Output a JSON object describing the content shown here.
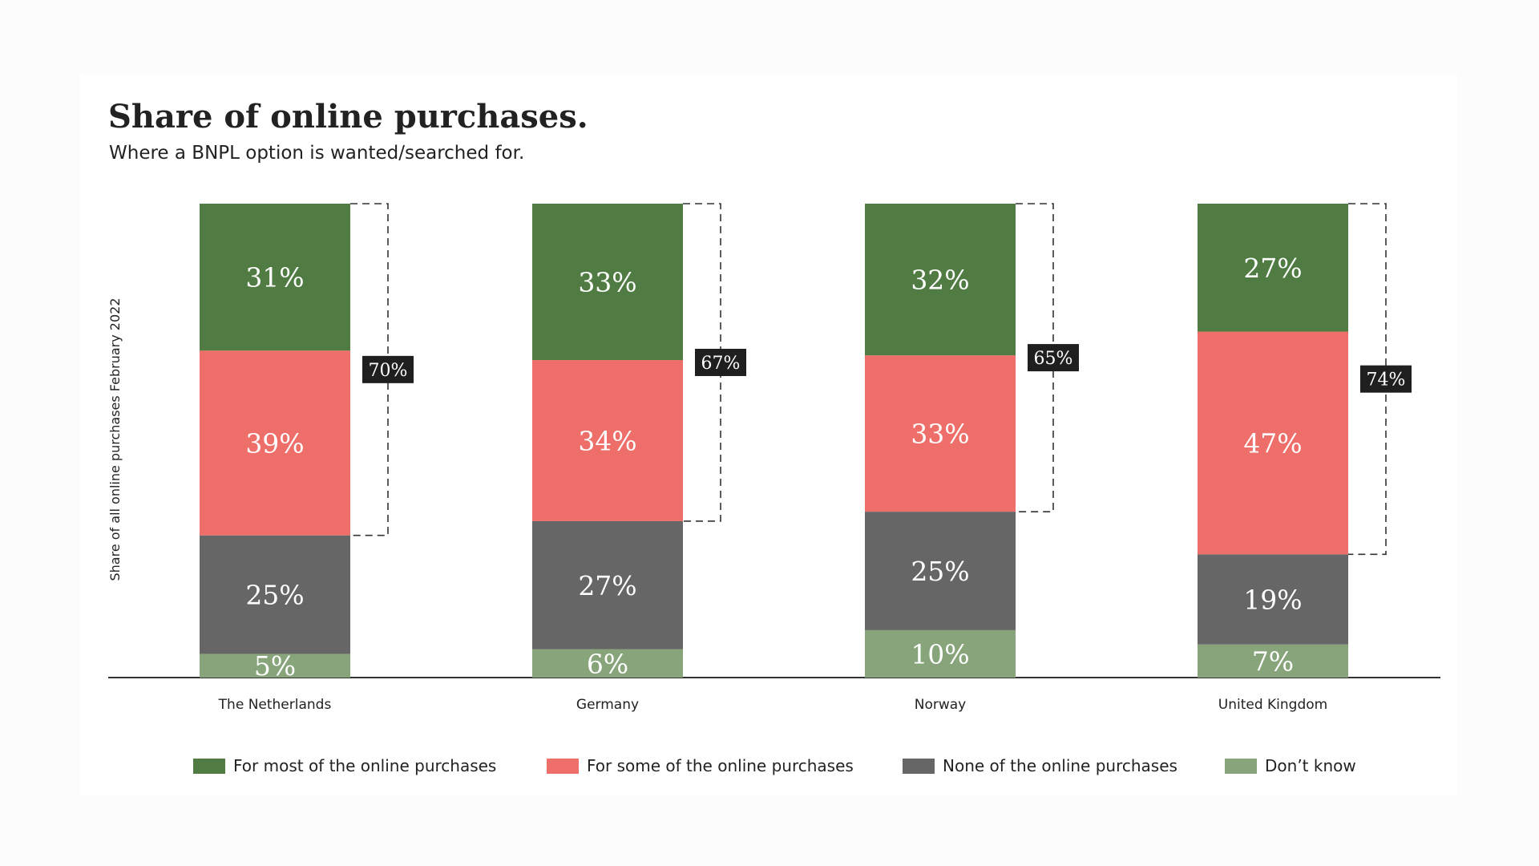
{
  "chart_data": {
    "type": "bar",
    "stacked": true,
    "title": "Share of online purchases.",
    "subtitle": "Where a BNPL option is wanted/searched for.",
    "xlabel": "",
    "ylabel": "Share of all online purchases February 2022",
    "ylim": [
      0,
      100
    ],
    "categories": [
      "The Netherlands",
      "Germany",
      "Norway",
      "United Kingdom"
    ],
    "series": [
      {
        "name": "Don’t know",
        "color": "#87a47a",
        "values": [
          5,
          6,
          10,
          7
        ]
      },
      {
        "name": "None of the online purchases",
        "color": "#666666",
        "values": [
          25,
          27,
          25,
          19
        ]
      },
      {
        "name": "For some of the online purchases",
        "color": "#ee6f6a",
        "values": [
          39,
          34,
          33,
          47
        ]
      },
      {
        "name": "For most of the online purchases",
        "color": "#507c43",
        "values": [
          31,
          33,
          32,
          27
        ]
      }
    ],
    "value_labels": [
      {
        "series": "Don’t know",
        "labels": [
          "5%",
          "6%",
          "10%",
          "7%"
        ]
      },
      {
        "series": "None of the online purchases",
        "labels": [
          "25%",
          "27%",
          "25%",
          "19%"
        ]
      },
      {
        "series": "For some of the online purchases",
        "labels": [
          "39%",
          "34%",
          "33%",
          "47%"
        ]
      },
      {
        "series": "For most of the online purchases",
        "labels": [
          "31%",
          "33%",
          "32%",
          "27%"
        ]
      }
    ],
    "bracket_totals": [
      "70%",
      "67%",
      "65%",
      "74%"
    ],
    "legend_order": [
      "For most of the online purchases",
      "For some of the online purchases",
      "None of the online purchases",
      "Don’t know"
    ],
    "legend_position": "bottom",
    "grid": false
  }
}
